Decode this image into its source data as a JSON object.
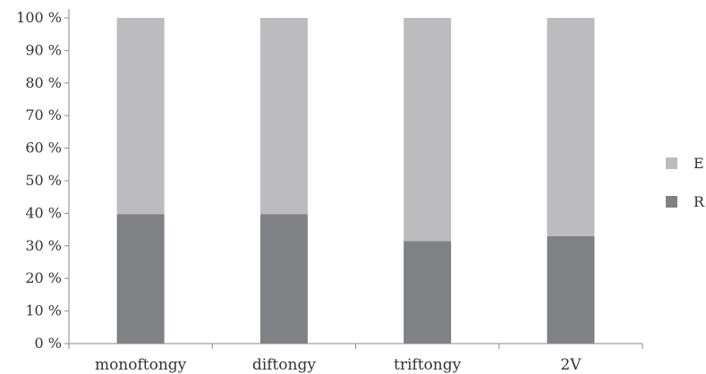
{
  "chart_data": {
    "type": "bar",
    "stacked": true,
    "percent": true,
    "categories": [
      "monoftongy",
      "diftongy",
      "triftongy",
      "2V"
    ],
    "series": [
      {
        "name": "R",
        "values": [
          39.7,
          39.7,
          31.5,
          33.0
        ],
        "color": "#808184"
      },
      {
        "name": "E",
        "values": [
          60.3,
          60.3,
          68.5,
          67.0
        ],
        "color": "#bcbcbe"
      }
    ],
    "y_ticks": [
      "0 %",
      "10 %",
      "20 %",
      "30 %",
      "40 %",
      "50 %",
      "60 %",
      "70 %",
      "80 %",
      "90 %",
      "100 %"
    ],
    "ylim": [
      0,
      100
    ],
    "grid": false,
    "legend_position": "right",
    "legend_order": [
      "E",
      "R"
    ]
  }
}
